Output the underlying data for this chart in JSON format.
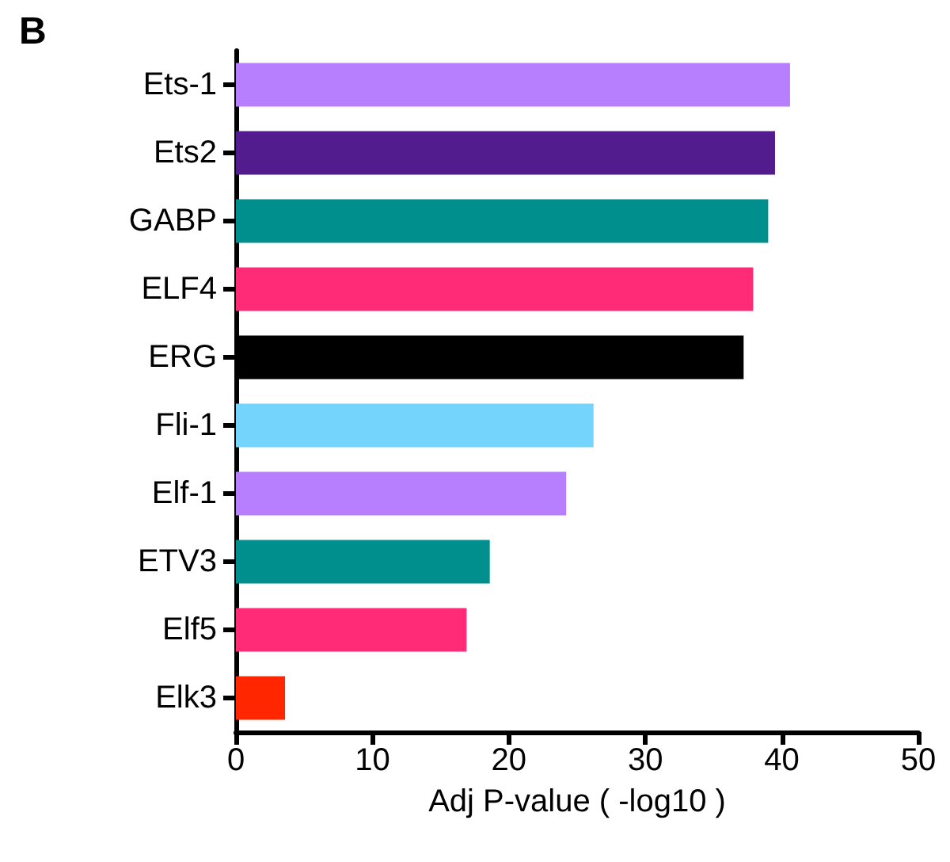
{
  "chart_data": {
    "type": "bar",
    "orientation": "horizontal",
    "xlabel": "Adj P-value ( -log10 )",
    "annotations": [
      "B"
    ],
    "categories": [
      "Ets-1",
      "Ets2",
      "GABP",
      "ELF4",
      "ERG",
      "Fli-1",
      "Elf-1",
      "ETV3",
      "Elf5",
      "Elk3"
    ],
    "values": [
      40.6,
      39.5,
      39.0,
      37.9,
      37.2,
      26.2,
      24.2,
      18.6,
      16.9,
      3.6
    ],
    "colors": [
      "#b77ffe",
      "#521c8f",
      "#008f8c",
      "#ff2b77",
      "#000000",
      "#74d4fb",
      "#b77ffe",
      "#008f8c",
      "#ff2b77",
      "#ff2600"
    ],
    "xlim": [
      0,
      50
    ],
    "xticks": [
      0,
      10,
      20,
      30,
      40,
      50
    ],
    "grid": false
  }
}
